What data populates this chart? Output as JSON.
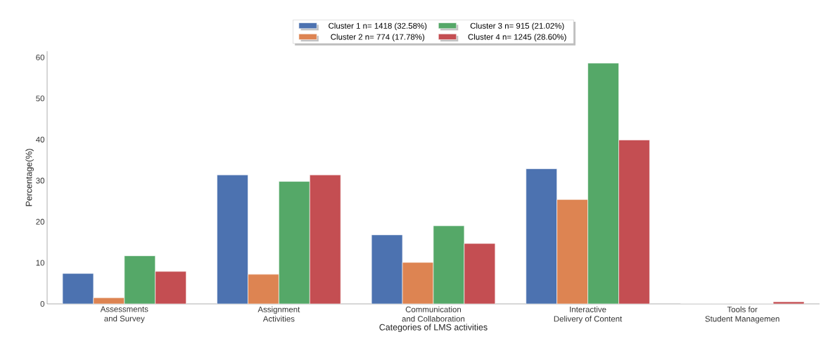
{
  "chart_data": {
    "type": "bar",
    "xlabel": "Categories of LMS activities",
    "ylabel": "Percentage(%)",
    "categories": [
      "Assessments\nand Survey",
      "Assignment\nActivities",
      "Communication\nand Collaboration",
      "Interactive\nDelivery of Content",
      "Tools for\nStudent Managemen"
    ],
    "series": [
      {
        "name": "Cluster 1 n= 1418 (32.58%)",
        "color": "#4c72b0",
        "values": [
          7.4,
          31.4,
          16.8,
          32.9,
          0
        ]
      },
      {
        "name": "Cluster 2 n= 774 (17.78%)",
        "color": "#dd8452",
        "values": [
          1.5,
          7.2,
          10.1,
          25.4,
          0
        ]
      },
      {
        "name": "Cluster 3 n= 915 (21.02%)",
        "color": "#55a868",
        "values": [
          11.7,
          29.8,
          19.0,
          58.6,
          0
        ]
      },
      {
        "name": "Cluster 4 n= 1245 (28.60%)",
        "color": "#c44e52",
        "values": [
          7.9,
          31.4,
          14.7,
          39.9,
          0.5
        ]
      }
    ],
    "ylim": [
      0,
      61.5
    ],
    "yticks": [
      0,
      10,
      20,
      30,
      40,
      50,
      60
    ],
    "legend": "top"
  }
}
